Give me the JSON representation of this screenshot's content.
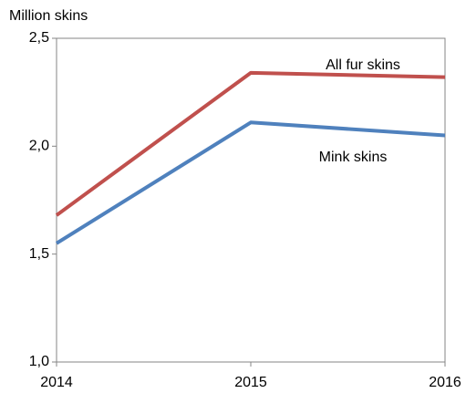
{
  "chart_data": {
    "type": "line",
    "y_label": "Million skins",
    "x": [
      2014,
      2015,
      2016
    ],
    "xlim": [
      2014,
      2016
    ],
    "xticks": [
      2014,
      2015,
      2016
    ],
    "ylim": [
      1.0,
      2.5
    ],
    "yticks": [
      {
        "value": 1.0,
        "label": "1,0"
      },
      {
        "value": 1.5,
        "label": "1,5"
      },
      {
        "value": 2.0,
        "label": "2,0"
      },
      {
        "value": 2.5,
        "label": "2,5"
      }
    ],
    "grid": false,
    "series": [
      {
        "name": "All fur skins",
        "color": "#c0504d",
        "values": [
          1.68,
          2.34,
          2.32
        ]
      },
      {
        "name": "Mink skins",
        "color": "#4f81bd",
        "values": [
          1.55,
          2.11,
          2.05
        ]
      }
    ]
  }
}
